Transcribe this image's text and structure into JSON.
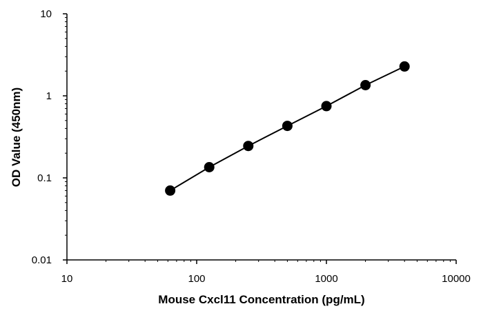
{
  "chart_data": {
    "type": "line",
    "scale_x": "log",
    "scale_y": "log",
    "xlim": [
      10,
      10000
    ],
    "ylim": [
      0.01,
      10
    ],
    "xticks": [
      {
        "value": 10,
        "label": "10"
      },
      {
        "value": 100,
        "label": "100"
      },
      {
        "value": 1000,
        "label": "1000"
      },
      {
        "value": 10000,
        "label": "10000"
      }
    ],
    "yticks": [
      {
        "value": 0.01,
        "label": "0.01"
      },
      {
        "value": 0.1,
        "label": "0.1"
      },
      {
        "value": 1,
        "label": "1"
      },
      {
        "value": 10,
        "label": "10"
      }
    ],
    "xlabel": "Mouse Cxcl11 Concentration (pg/mL)",
    "ylabel": "OD Value (450nm)",
    "grid": false,
    "legend": false,
    "series": [
      {
        "color": "#000000",
        "marker": "circle",
        "x": [
          62.5,
          125,
          250,
          500,
          1000,
          2000,
          4000
        ],
        "y": [
          0.07,
          0.135,
          0.245,
          0.43,
          0.75,
          1.35,
          2.28
        ]
      }
    ]
  }
}
